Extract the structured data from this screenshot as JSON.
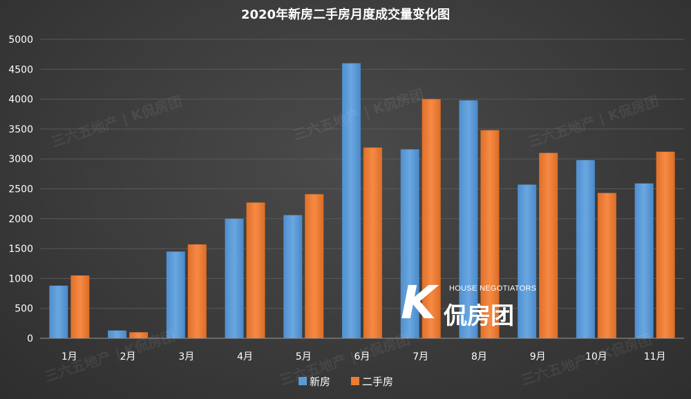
{
  "chart_data": {
    "type": "bar",
    "title": "2020年新房二手房月度成交量变化图",
    "categories": [
      "1月",
      "2月",
      "3月",
      "4月",
      "5月",
      "6月",
      "7月",
      "8月",
      "9月",
      "10月",
      "11月"
    ],
    "series": [
      {
        "name": "新房",
        "color": "#5b9bd5",
        "values": [
          880,
          130,
          1450,
          2000,
          2060,
          4600,
          3160,
          3980,
          2570,
          2980,
          2590
        ]
      },
      {
        "name": "二手房",
        "color": "#ed7d31",
        "values": [
          1050,
          100,
          1570,
          2270,
          2410,
          3190,
          4000,
          3480,
          3100,
          2430,
          3120
        ]
      }
    ],
    "ylim": [
      0,
      5000
    ],
    "yticks": [
      0,
      500,
      1000,
      1500,
      2000,
      2500,
      3000,
      3500,
      4000,
      4500,
      5000
    ],
    "xlabel": "",
    "ylabel": "",
    "grid": true,
    "legend": "bottom"
  },
  "watermark": {
    "text": "三六五地产 | K侃房团",
    "logo_en": "HOUSE NEGOTIATORS",
    "logo_cn": "侃房团",
    "logo_k": "K"
  }
}
